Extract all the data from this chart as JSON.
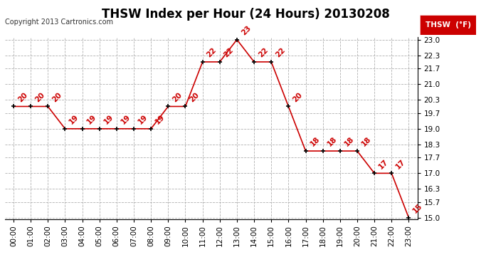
{
  "title": "THSW Index per Hour (24 Hours) 20130208",
  "copyright": "Copyright 2013 Cartronics.com",
  "legend_label": "THSW  (°F)",
  "hours": [
    0,
    1,
    2,
    3,
    4,
    5,
    6,
    7,
    8,
    9,
    10,
    11,
    12,
    13,
    14,
    15,
    16,
    17,
    18,
    19,
    20,
    21,
    22,
    23
  ],
  "x_labels": [
    "00:00",
    "01:00",
    "02:00",
    "03:00",
    "04:00",
    "05:00",
    "06:00",
    "07:00",
    "08:00",
    "09:00",
    "10:00",
    "11:00",
    "12:00",
    "13:00",
    "14:00",
    "15:00",
    "16:00",
    "17:00",
    "18:00",
    "19:00",
    "20:00",
    "21:00",
    "22:00",
    "23:00"
  ],
  "values": [
    20,
    20,
    20,
    19,
    19,
    19,
    19,
    19,
    19,
    20,
    20,
    22,
    22,
    23,
    22,
    22,
    20,
    18,
    18,
    18,
    18,
    17,
    17,
    15
  ],
  "y_min": 15.0,
  "y_max": 23.0,
  "y_ticks": [
    15.0,
    15.7,
    16.3,
    17.0,
    17.7,
    18.3,
    19.0,
    19.7,
    20.3,
    21.0,
    21.7,
    22.3,
    23.0
  ],
  "y_tick_labels": [
    "15.0",
    "15.7",
    "16.3",
    "17.0",
    "17.7",
    "18.3",
    "19.0",
    "19.7",
    "20.3",
    "21.0",
    "21.7",
    "22.3",
    "23.0"
  ],
  "line_color": "#cc0000",
  "marker_color": "#000000",
  "grid_color": "#b0b0b0",
  "bg_color": "#ffffff",
  "legend_bg": "#cc0000",
  "legend_text_color": "#ffffff",
  "title_fontsize": 12,
  "label_fontsize": 7.5,
  "annotation_fontsize": 7.5,
  "copyright_fontsize": 7
}
